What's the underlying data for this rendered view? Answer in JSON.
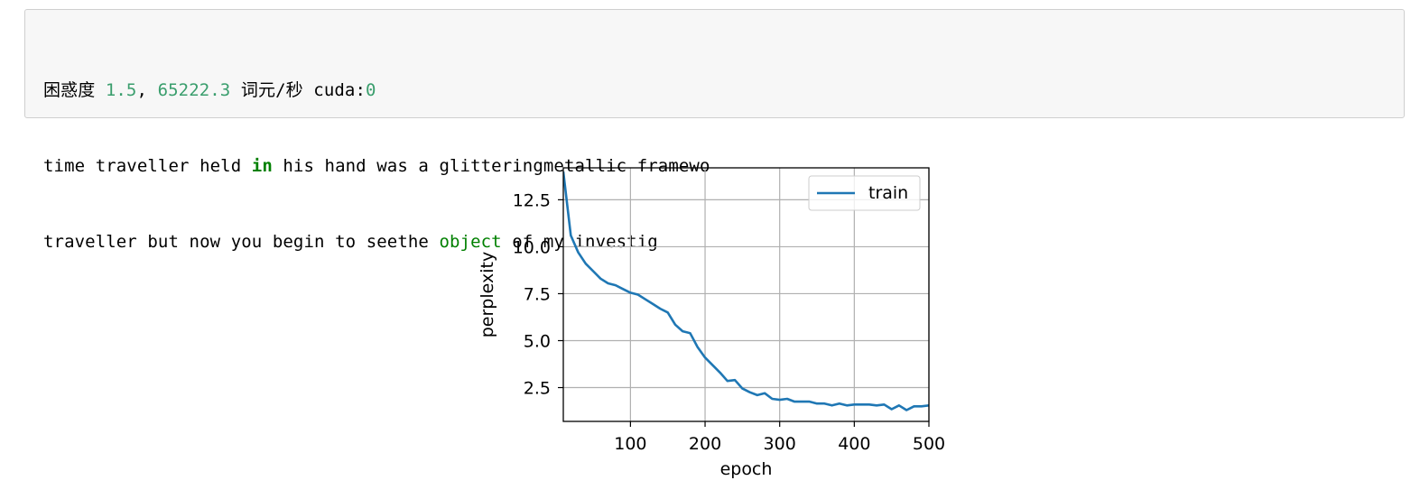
{
  "output": {
    "status_line": {
      "label_perplexity": "困惑度",
      "perplexity_value": "1.5",
      "comma": ",",
      "speed_value": "65222.3",
      "speed_unit": "词元/秒",
      "device_prefix": "cuda:",
      "device_index": "0"
    },
    "line2": {
      "part1": "time traveller held ",
      "keyword": "in",
      "part2": " his hand was a glitteringmetallic framewo"
    },
    "line3": {
      "part1": "traveller but now you begin to seethe ",
      "name": "object",
      "part2": " of my investig"
    }
  },
  "chart_data": {
    "type": "line",
    "xlabel": "epoch",
    "ylabel": "perplexity",
    "xlim": [
      10,
      500
    ],
    "ylim": [
      0.7,
      14.2
    ],
    "xticks": [
      100,
      200,
      300,
      400,
      500
    ],
    "yticks": [
      2.5,
      5.0,
      7.5,
      10.0,
      12.5
    ],
    "xtick_labels": [
      "100",
      "200",
      "300",
      "400",
      "500"
    ],
    "ytick_labels": [
      "2.5",
      "5.0",
      "7.5",
      "10.0",
      "12.5"
    ],
    "grid": true,
    "legend_position": "top-right",
    "series": [
      {
        "name": "train",
        "color": "#1f77b4",
        "x": [
          10,
          20,
          30,
          40,
          50,
          60,
          70,
          80,
          90,
          100,
          110,
          120,
          130,
          140,
          150,
          160,
          170,
          180,
          190,
          200,
          210,
          220,
          230,
          240,
          250,
          260,
          270,
          280,
          290,
          300,
          310,
          320,
          330,
          340,
          350,
          360,
          370,
          380,
          390,
          400,
          410,
          420,
          430,
          440,
          450,
          460,
          470,
          480,
          490,
          500
        ],
        "y": [
          14.0,
          10.6,
          9.7,
          9.1,
          8.7,
          8.3,
          8.05,
          7.95,
          7.75,
          7.55,
          7.45,
          7.2,
          6.95,
          6.7,
          6.5,
          5.85,
          5.5,
          5.4,
          4.65,
          4.1,
          3.7,
          3.3,
          2.85,
          2.9,
          2.45,
          2.25,
          2.1,
          2.2,
          1.9,
          1.85,
          1.9,
          1.75,
          1.75,
          1.75,
          1.65,
          1.65,
          1.55,
          1.65,
          1.55,
          1.6,
          1.6,
          1.6,
          1.55,
          1.6,
          1.35,
          1.55,
          1.3,
          1.5,
          1.5,
          1.55
        ]
      }
    ]
  }
}
